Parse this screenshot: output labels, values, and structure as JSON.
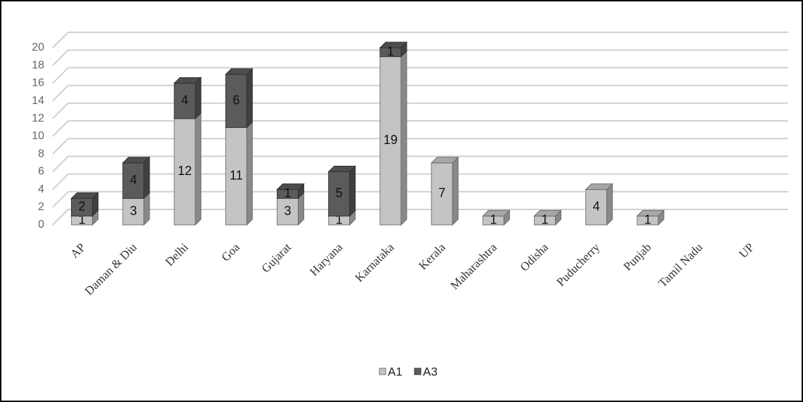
{
  "chart_data": {
    "type": "bar3d_stacked",
    "categories": [
      "AP",
      "Daman & Diu",
      "Delhi",
      "Goa",
      "Gujarat",
      "Haryana",
      "Karnataka",
      "Kerala",
      "Maharashtra",
      "Odisha",
      "Puducherry",
      "Punjab",
      "Tamil Nadu",
      "UP"
    ],
    "series": [
      {
        "name": "A1",
        "color": "#c4c4c4",
        "values": [
          1,
          3,
          12,
          11,
          3,
          1,
          19,
          7,
          1,
          1,
          4,
          1,
          null,
          null
        ]
      },
      {
        "name": "A3",
        "color": "#5b5b5b",
        "values": [
          2,
          4,
          4,
          6,
          1,
          5,
          1,
          null,
          null,
          null,
          null,
          null,
          null,
          null
        ]
      }
    ],
    "ylim": [
      0,
      20
    ],
    "yticks": [
      0,
      2,
      4,
      6,
      8,
      10,
      12,
      14,
      16,
      18,
      20
    ],
    "grid": true,
    "legend": "bottom"
  }
}
